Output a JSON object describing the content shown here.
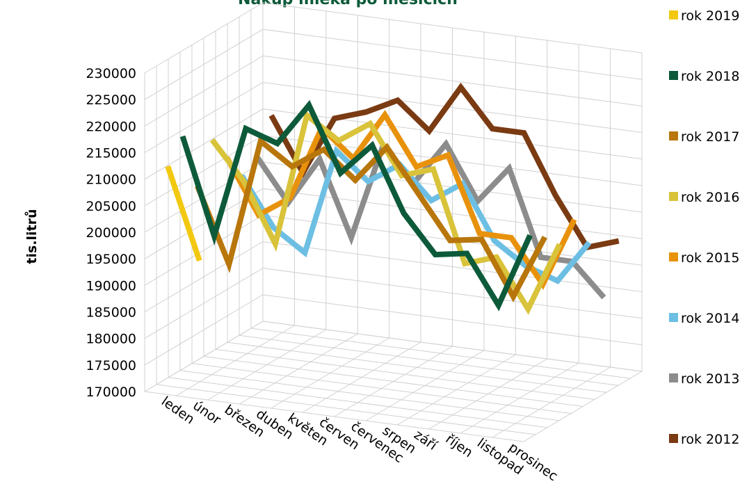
{
  "chart_data": {
    "type": "line3d",
    "title": "Nákup mléka po měsících",
    "y_label": "tis.litrů",
    "categories": [
      "leden",
      "únor",
      "březen",
      "duben",
      "květen",
      "červen",
      "červenec",
      "srpen",
      "září",
      "říjen",
      "listopad",
      "prosinec"
    ],
    "ylim": [
      170000,
      230000
    ],
    "yticks": [
      170000,
      175000,
      180000,
      185000,
      190000,
      195000,
      200000,
      205000,
      210000,
      215000,
      220000,
      225000,
      230000
    ],
    "grid": true,
    "series": [
      {
        "name": "rok 2019",
        "color": "#f2c811",
        "values": [
          212000,
          195000,
          null,
          null,
          null,
          null,
          null,
          null,
          null,
          null,
          null,
          null
        ]
      },
      {
        "name": "rok 2018",
        "color": "#0d5a3a",
        "values": [
          216000,
          198000,
          219000,
          217000,
          225000,
          213000,
          219000,
          207000,
          200000,
          201000,
          192000,
          206000
        ]
      },
      {
        "name": "rok 2017",
        "color": "#b8760b",
        "values": [
          205000,
          191000,
          215000,
          211000,
          215000,
          210000,
          217000,
          209000,
          201000,
          202000,
          192000,
          204000
        ]
      },
      {
        "name": "rok 2016",
        "color": "#d9c33a",
        "values": [
          212000,
          205000,
          194000,
          219000,
          215000,
          219000,
          210000,
          212000,
          195000,
          197000,
          188000,
          201000
        ]
      },
      {
        "name": "rok 2015",
        "color": "#e8920c",
        "values": [
          207000,
          197000,
          201000,
          215000,
          210000,
          219000,
          210000,
          213000,
          199000,
          199000,
          191000,
          204000
        ]
      },
      {
        "name": "rok 2014",
        "color": "#6cbfe3",
        "values": [
          202000,
          193000,
          189000,
          209000,
          204000,
          208000,
          202000,
          206000,
          196000,
          192000,
          190000,
          198000
        ]
      },
      {
        "name": "rok 2013",
        "color": "#8c8c8c",
        "values": [
          204000,
          196000,
          205000,
          191000,
          209000,
          203000,
          211000,
          201000,
          208000,
          192000,
          192000,
          186000
        ]
      },
      {
        "name": "rok 2012",
        "color": "#7a3a12",
        "values": [
          210000,
          200000,
          211000,
          213000,
          216000,
          211000,
          220000,
          213000,
          213000,
          202000,
          193000,
          195000
        ]
      }
    ]
  }
}
